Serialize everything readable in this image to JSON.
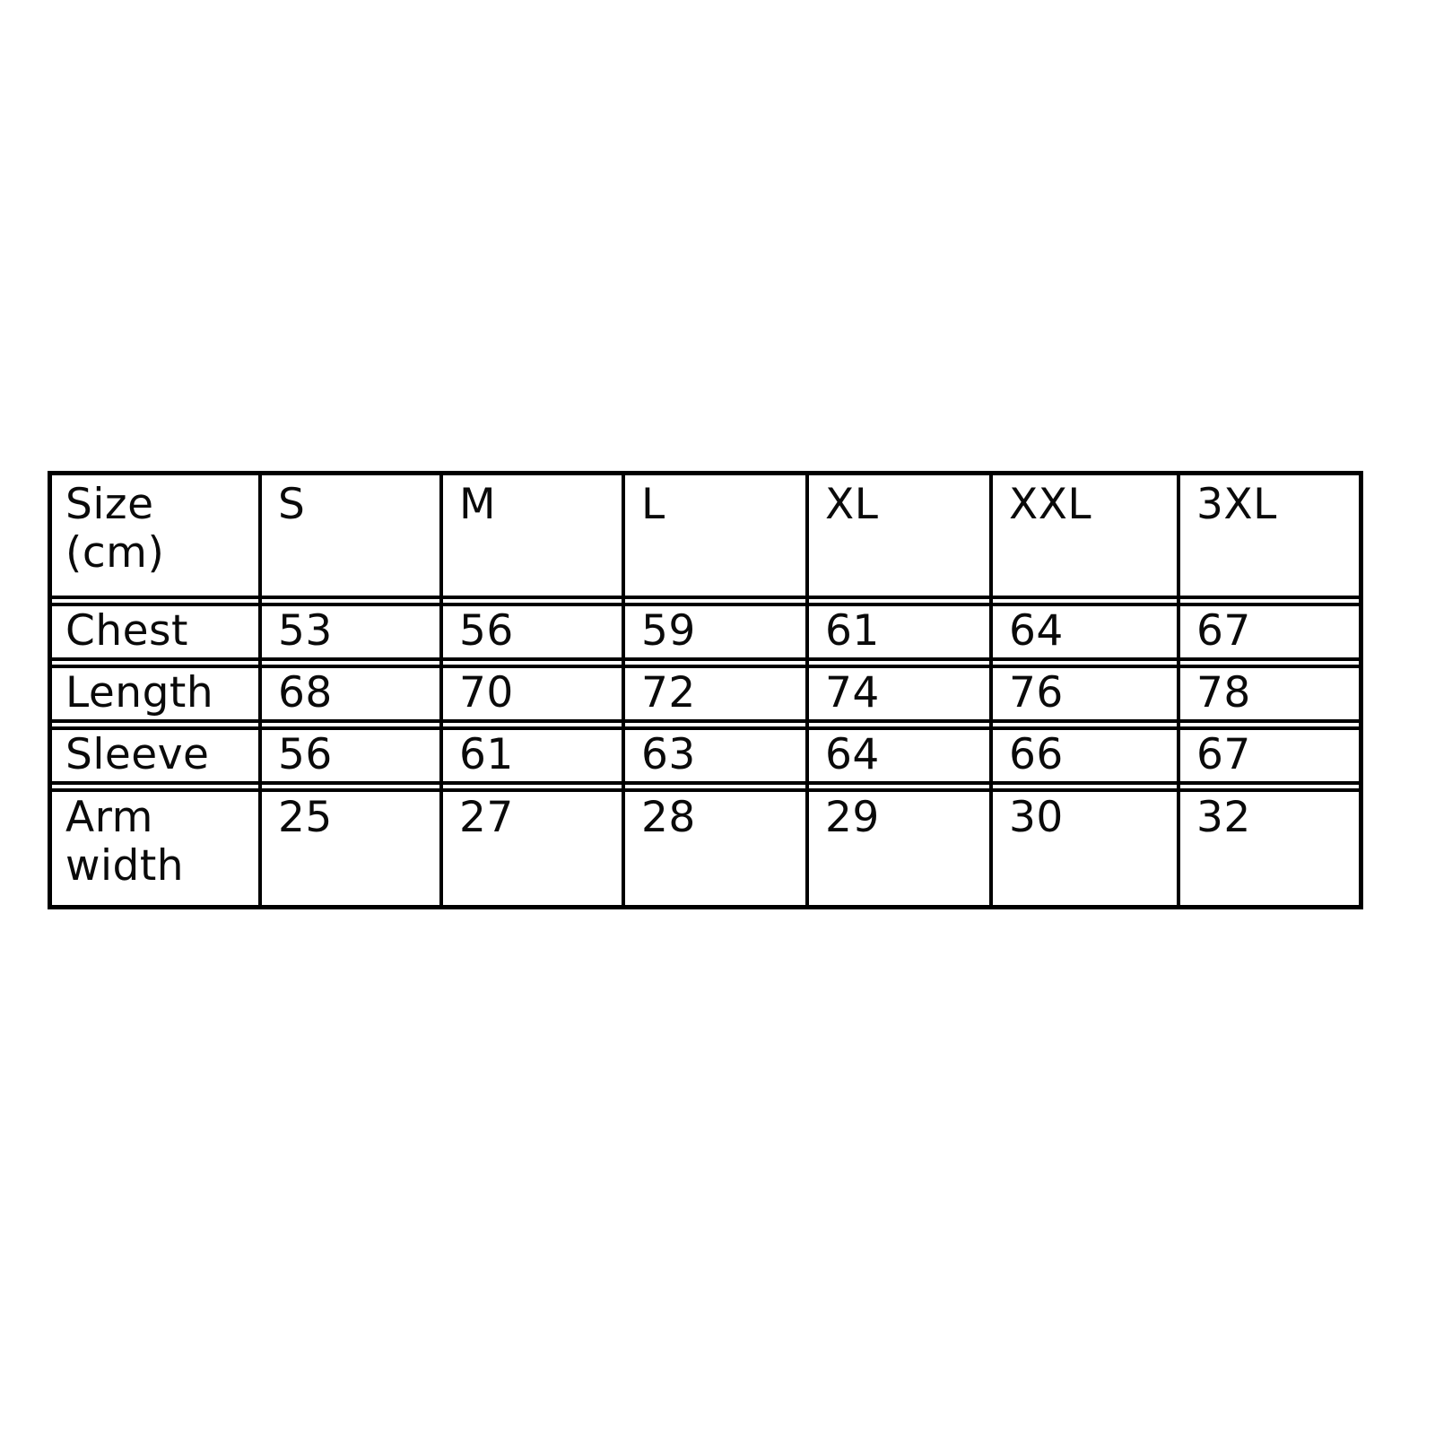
{
  "page": {
    "background_color": "#ffffff",
    "border_color": "#000000",
    "text_color": "#0a0a0a"
  },
  "chart_data": {
    "type": "table",
    "corner_label": "Size (cm)",
    "columns": [
      "S",
      "M",
      "L",
      "XL",
      "XXL",
      "3XL"
    ],
    "rows": [
      {
        "label": "Chest",
        "values": [
          "53",
          "56",
          "59",
          "61",
          "64",
          "67"
        ]
      },
      {
        "label": "Length",
        "values": [
          "68",
          "70",
          "72",
          "74",
          "76",
          "78"
        ]
      },
      {
        "label": "Sleeve",
        "values": [
          "56",
          "61",
          "63",
          "64",
          "66",
          "67"
        ]
      },
      {
        "label": "Arm width",
        "values": [
          "25",
          "27",
          "28",
          "29",
          "30",
          "32"
        ]
      }
    ]
  }
}
